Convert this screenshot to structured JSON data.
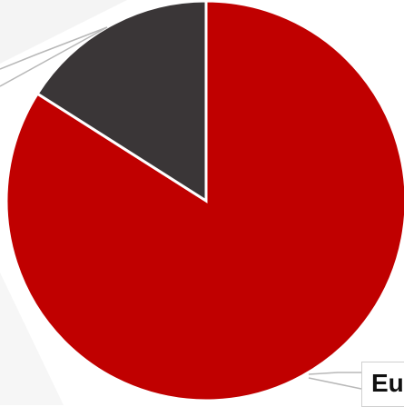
{
  "chart_data": {
    "type": "pie",
    "slices": [
      {
        "label": "",
        "value": 84,
        "color": "#c00000"
      },
      {
        "label": "",
        "value": 16,
        "color": "#3a3637"
      }
    ],
    "data_labels": [
      "Eu"
    ],
    "legend": "none",
    "grid": false
  }
}
